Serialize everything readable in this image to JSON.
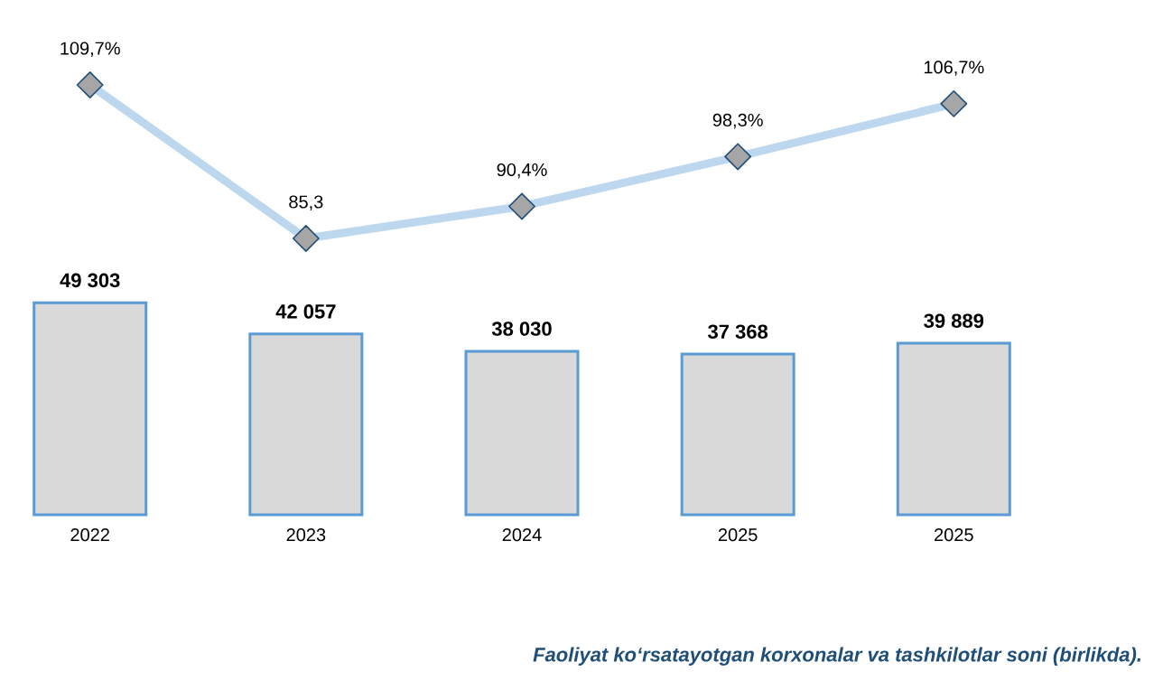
{
  "chart_data": [
    {
      "type": "line",
      "categories": [
        null,
        null,
        null,
        null,
        null
      ],
      "color": "#bdd7ee",
      "marker": "diamond",
      "values": [
        109.7,
        85.3,
        90.4,
        98.3,
        106.7
      ],
      "value_labels": [
        "109,7%",
        "85,3",
        "90,4%",
        "98,3%",
        "106,7%"
      ]
    },
    {
      "type": "bar",
      "categories": [
        "2022",
        "2023",
        "2024",
        "2025",
        "2025"
      ],
      "color": "#d9d9d9",
      "values": [
        49303,
        42057,
        38030,
        37368,
        39889
      ],
      "value_labels": [
        "49 303",
        "42 057",
        "38 030",
        "37 368",
        "39 889"
      ],
      "annotations": [
        "Faoliyat ko‘rsatayotgan korxonalar va tashkilotlar soni (birlikda)."
      ]
    }
  ]
}
